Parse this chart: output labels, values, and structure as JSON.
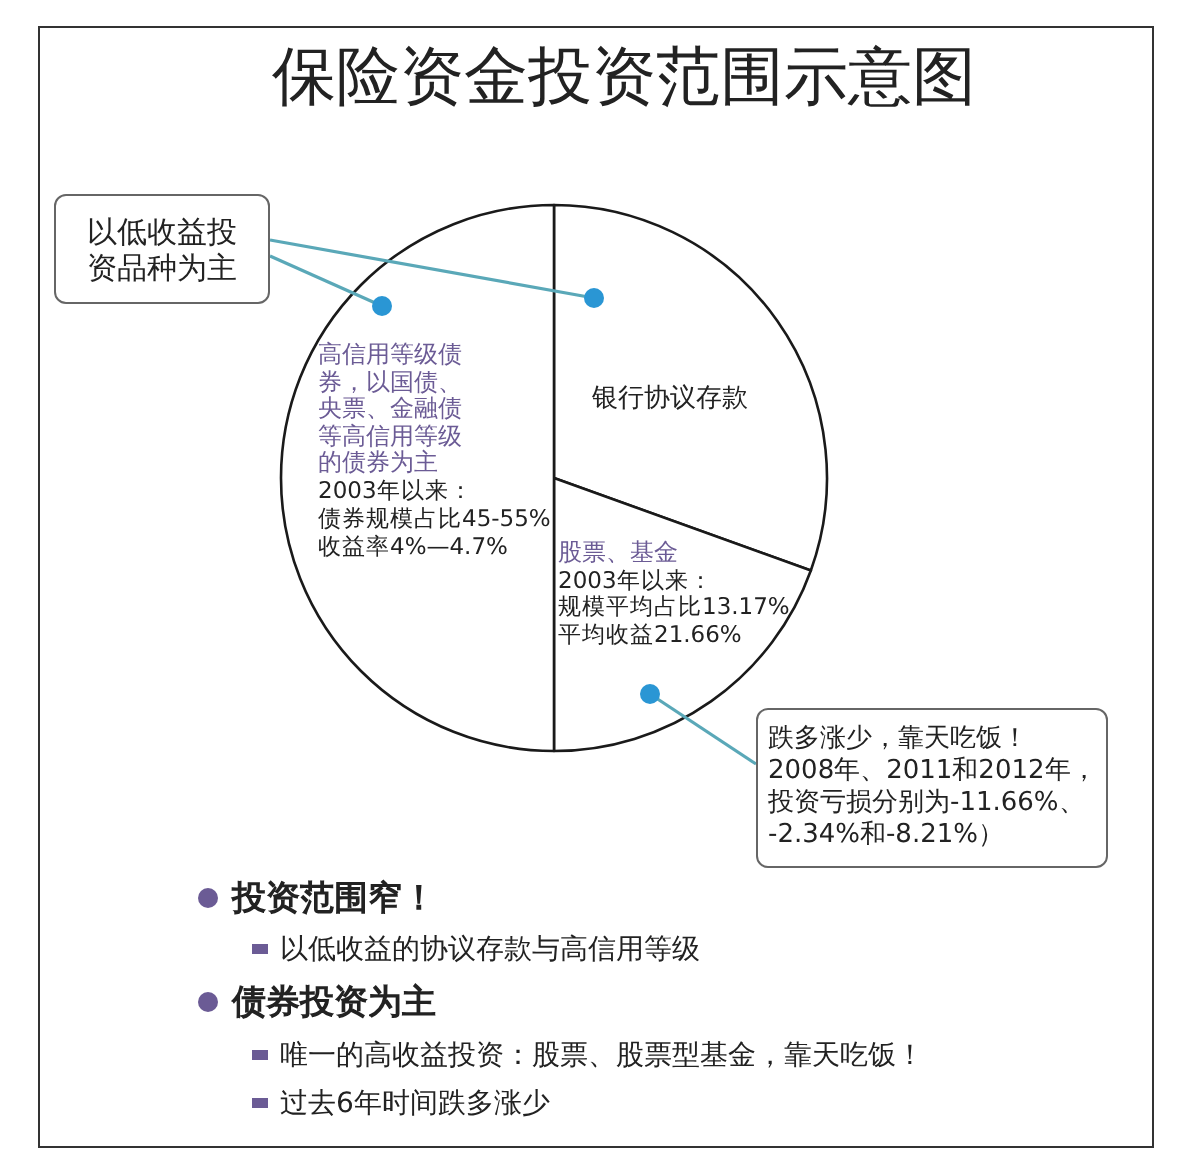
{
  "chart_data": {
    "type": "pie",
    "title": "保险资金投资范围示意图",
    "categories": [
      "银行协议存款",
      "股票、基金",
      "高信用等级债券，以国债、央票、金融债等高信用等级的债券为主"
    ],
    "values": [
      30.5,
      19.5,
      50
    ],
    "colors": [
      "#ffffff",
      "#ffffff",
      "#ffffff"
    ],
    "annotations": [
      "2003年以来：",
      "规模平均占比13.17%",
      "平均收益21.66%",
      "2003年以来：",
      "债券规模占比45-55%",
      "收益率4%—4.7%",
      "以低收益投资品种为主",
      "跌多涨少，靠天吃饭！",
      "2008年、2011和2012年，",
      "投资亏损分别为-11.66%、",
      "-2.34%和-8.21%）",
      "投资范围窄！",
      "以低收益的协议存款与高信用等级",
      "债券投资为主",
      "唯一的高收益投资：股票、股票型基金，靠天吃饭！",
      "过去6年时间跌多涨少"
    ]
  }
}
